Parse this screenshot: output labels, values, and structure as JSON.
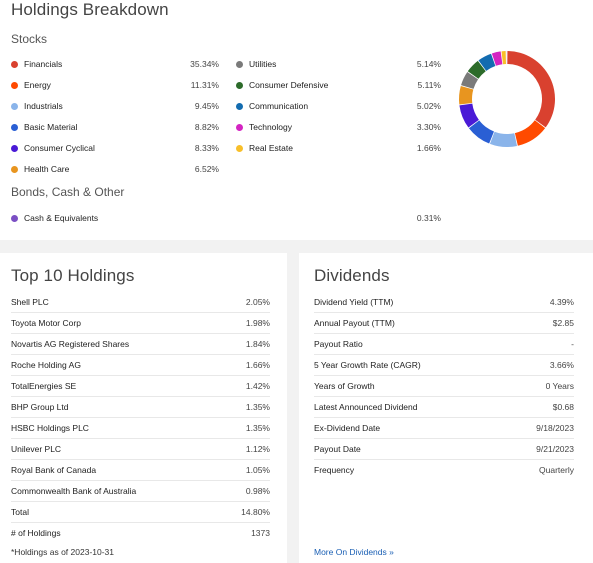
{
  "holdings": {
    "title": "Holdings Breakdown",
    "stocks_label": "Stocks",
    "bonds_label": "Bonds, Cash & Other",
    "left_col": [
      {
        "name": "Financials",
        "value": "35.34%",
        "color": "#d9412f"
      },
      {
        "name": "Energy",
        "value": "11.31%",
        "color": "#ff4a00"
      },
      {
        "name": "Industrials",
        "value": "9.45%",
        "color": "#8ab4ea"
      },
      {
        "name": "Basic Material",
        "value": "8.82%",
        "color": "#2a5fd4"
      },
      {
        "name": "Consumer Cyclical",
        "value": "8.33%",
        "color": "#4a1ad6"
      },
      {
        "name": "Health Care",
        "value": "6.52%",
        "color": "#e8951f"
      }
    ],
    "right_col": [
      {
        "name": "Utilities",
        "value": "5.14%",
        "color": "#7a7a7a"
      },
      {
        "name": "Consumer Defensive",
        "value": "5.11%",
        "color": "#2c6b2a"
      },
      {
        "name": "Communication",
        "value": "5.02%",
        "color": "#136cb0"
      },
      {
        "name": "Technology",
        "value": "3.30%",
        "color": "#d424c2"
      },
      {
        "name": "Real Estate",
        "value": "1.66%",
        "color": "#f8bf2a"
      }
    ],
    "other": [
      {
        "name": "Cash & Equivalents",
        "value": "0.31%",
        "color": "#7b4fc4"
      }
    ],
    "donut_slices": [
      {
        "pct": 35.34,
        "color": "#d9412f"
      },
      {
        "pct": 11.31,
        "color": "#ff4a00"
      },
      {
        "pct": 9.45,
        "color": "#8ab4ea"
      },
      {
        "pct": 8.82,
        "color": "#2a5fd4"
      },
      {
        "pct": 8.33,
        "color": "#4a1ad6"
      },
      {
        "pct": 6.52,
        "color": "#e8951f"
      },
      {
        "pct": 5.14,
        "color": "#7a7a7a"
      },
      {
        "pct": 5.11,
        "color": "#2c6b2a"
      },
      {
        "pct": 5.02,
        "color": "#136cb0"
      },
      {
        "pct": 3.3,
        "color": "#d424c2"
      },
      {
        "pct": 1.66,
        "color": "#f8bf2a"
      },
      {
        "pct": 0.31,
        "color": "#7b4fc4"
      }
    ]
  },
  "top10": {
    "title": "Top 10 Holdings",
    "rows": [
      {
        "name": "Shell PLC",
        "value": "2.05%"
      },
      {
        "name": "Toyota Motor Corp",
        "value": "1.98%"
      },
      {
        "name": "Novartis AG Registered Shares",
        "value": "1.84%"
      },
      {
        "name": "Roche Holding AG",
        "value": "1.66%"
      },
      {
        "name": "TotalEnergies SE",
        "value": "1.42%"
      },
      {
        "name": "BHP Group Ltd",
        "value": "1.35%"
      },
      {
        "name": "HSBC Holdings PLC",
        "value": "1.35%"
      },
      {
        "name": "Unilever PLC",
        "value": "1.12%"
      },
      {
        "name": "Royal Bank of Canada",
        "value": "1.05%"
      },
      {
        "name": "Commonwealth Bank of Australia",
        "value": "0.98%"
      },
      {
        "name": "Total",
        "value": "14.80%"
      },
      {
        "name": "# of Holdings",
        "value": "1373"
      }
    ],
    "footnote": "*Holdings as of 2023-10-31"
  },
  "dividends": {
    "title": "Dividends",
    "rows": [
      {
        "name": "Dividend Yield (TTM)",
        "value": "4.39%"
      },
      {
        "name": "Annual Payout (TTM)",
        "value": "$2.85"
      },
      {
        "name": "Payout Ratio",
        "value": "-"
      },
      {
        "name": "5 Year Growth Rate (CAGR)",
        "value": "3.66%"
      },
      {
        "name": "Years of Growth",
        "value": "0 Years"
      },
      {
        "name": "Latest Announced Dividend",
        "value": "$0.68"
      },
      {
        "name": "Ex-Dividend Date",
        "value": "9/18/2023"
      },
      {
        "name": "Payout Date",
        "value": "9/21/2023"
      },
      {
        "name": "Frequency",
        "value": "Quarterly"
      }
    ],
    "more_link": "More On Dividends »"
  }
}
